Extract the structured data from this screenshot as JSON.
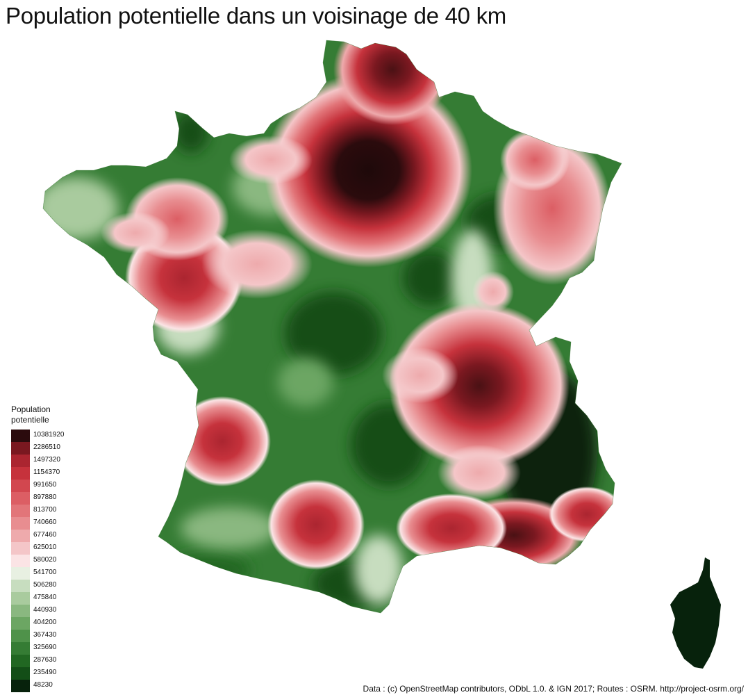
{
  "title": "Population potentielle dans un voisinage de 40 km",
  "legend": {
    "title": "Population\npotentielle",
    "classes": [
      {
        "label": "10381920",
        "color": "#2b0b0d"
      },
      {
        "label": "2286510",
        "color": "#7a1820"
      },
      {
        "label": "1497320",
        "color": "#ab2530"
      },
      {
        "label": "1154370",
        "color": "#c6323c"
      },
      {
        "label": "991650",
        "color": "#d2474f"
      },
      {
        "label": "897880",
        "color": "#dc5e64"
      },
      {
        "label": "813700",
        "color": "#e27579"
      },
      {
        "label": "740660",
        "color": "#e88d90"
      },
      {
        "label": "677460",
        "color": "#eeaaac"
      },
      {
        "label": "625010",
        "color": "#f4c6c8"
      },
      {
        "label": "580020",
        "color": "#fbe4e5"
      },
      {
        "label": "541700",
        "color": "#e8f0e2"
      },
      {
        "label": "506280",
        "color": "#c7ddbf"
      },
      {
        "label": "475840",
        "color": "#a9cb9e"
      },
      {
        "label": "440930",
        "color": "#8ab880"
      },
      {
        "label": "404200",
        "color": "#6ca663"
      },
      {
        "label": "367430",
        "color": "#4f924a"
      },
      {
        "label": "325690",
        "color": "#357c34"
      },
      {
        "label": "287630",
        "color": "#216722"
      },
      {
        "label": "235490",
        "color": "#134e17"
      },
      {
        "label": "48230",
        "color": "#07220c"
      }
    ]
  },
  "credits": "Data : (c) OpenStreetMap contributors, ODbL 1.0. & IGN 2017; Routes : OSRM. http://project-osrm.org/"
}
